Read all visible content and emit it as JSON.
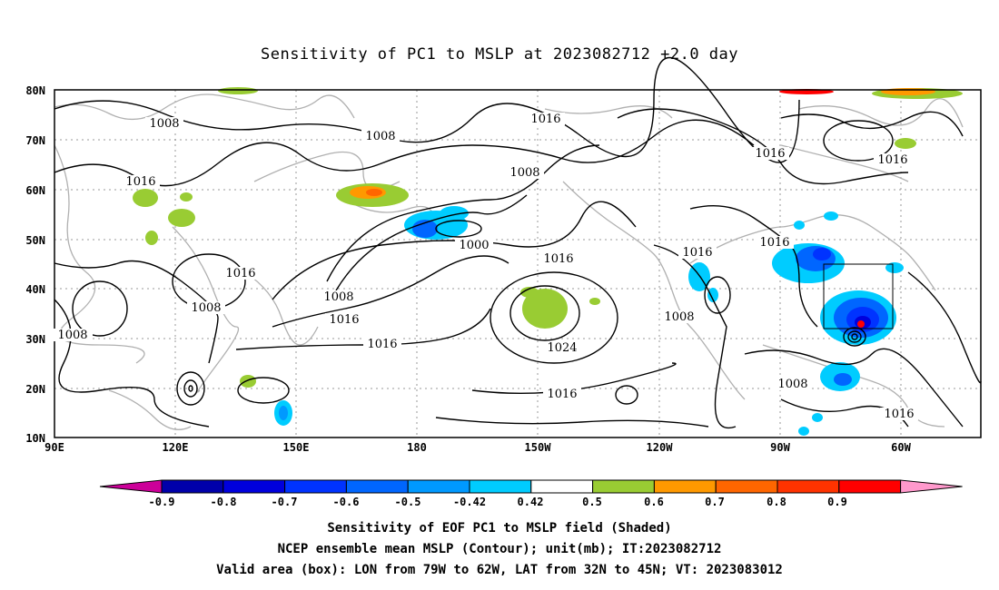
{
  "title": "Sensitivity of PC1 to MSLP at 2023082712 +2.0 day",
  "lat_labels": [
    "80N",
    "70N",
    "60N",
    "50N",
    "40N",
    "30N",
    "20N",
    "10N"
  ],
  "lon_labels": [
    "90E",
    "120E",
    "150E",
    "180",
    "150W",
    "120W",
    "90W",
    "60W"
  ],
  "contour_labels": [
    "1008",
    "1016",
    "1016",
    "1008",
    "1008",
    "1016",
    "1000",
    "1016",
    "1016",
    "1016",
    "1008",
    "1008",
    "1016",
    "1008",
    "1008",
    "1016",
    "1016",
    "1024",
    "1016",
    "1008",
    "1008",
    "1016"
  ],
  "colorbar": {
    "labels": [
      "-0.9",
      "-0.8",
      "-0.7",
      "-0.6",
      "-0.5",
      "-0.42",
      "0.42",
      "0.5",
      "0.6",
      "0.7",
      "0.8",
      "0.9"
    ],
    "colors": [
      "#cc0099",
      "#0000aa",
      "#0000dd",
      "#0033ff",
      "#0066ff",
      "#0099ff",
      "#00ccff",
      "#ffffff",
      "#99cc33",
      "#ff9900",
      "#ff6600",
      "#ff3300",
      "#ff0000",
      "#ff99cc"
    ]
  },
  "caption": {
    "line1": "Sensitivity of EOF PC1 to MSLP field (Shaded)",
    "line2": "NCEP ensemble mean MSLP (Contour); unit(mb); IT:2023082712",
    "line3": "Valid area (box): LON from 79W to 62W, LAT from 32N to 45N; VT: 2023083012"
  }
}
